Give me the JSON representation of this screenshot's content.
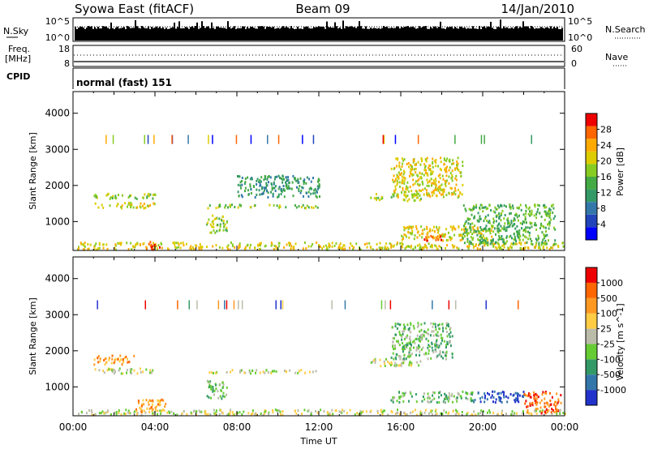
{
  "header": {
    "station": "Syowa East (fitACF)",
    "beam": "Beam 09",
    "date": "14/Jan/2010"
  },
  "top_panels": {
    "nsky_label": "N.Sky",
    "nsky_ticks": [
      "10^5",
      "10^0"
    ],
    "nsearch_label": "N.Search",
    "nsearch_ticks": [
      "10^5",
      "10^0"
    ],
    "freq_label": "Freq.",
    "freq_unit": "[MHz]",
    "freq_ticks": [
      "18",
      "8"
    ],
    "nave_label": "Nave",
    "nave_ticks": [
      "60",
      "0"
    ],
    "cpid_label": "CPID",
    "cpid_value": "normal (fast) 151"
  },
  "chart_data": [
    {
      "type": "heatmap",
      "name": "power",
      "ylabel": "Slant Range [km]",
      "xlabel": "",
      "ylim": [
        200,
        4600
      ],
      "xlim": [
        0,
        24
      ],
      "y_ticks": [
        "1000",
        "2000",
        "3000",
        "4000"
      ],
      "colorbar": {
        "label": "Power [dB]",
        "range": [
          0,
          32
        ],
        "ticks": [
          "28",
          "24",
          "20",
          "16",
          "12",
          "8",
          "4"
        ],
        "colors": [
          "#0000ff",
          "#2244bb",
          "#3377aa",
          "#339966",
          "#44aa44",
          "#88cc22",
          "#ddcc00",
          "#ffaa00",
          "#ff6600",
          "#ee0000"
        ]
      },
      "echo_regions": [
        {
          "t": [
            0.2,
            24.0
          ],
          "r": [
            250,
            450
          ],
          "level": 6
        },
        {
          "t": [
            1.0,
            4.0
          ],
          "r": [
            1400,
            1550
          ],
          "level": 6
        },
        {
          "t": [
            1.0,
            4.0
          ],
          "r": [
            1650,
            1800
          ],
          "level": 5
        },
        {
          "t": [
            6.5,
            12.0
          ],
          "r": [
            1400,
            1500
          ],
          "level": 5
        },
        {
          "t": [
            6.5,
            7.5
          ],
          "r": [
            700,
            1200
          ],
          "level": 5
        },
        {
          "t": [
            14.5,
            17.0
          ],
          "r": [
            1600,
            1800
          ],
          "level": 5
        },
        {
          "t": [
            15.5,
            19.0
          ],
          "r": [
            1700,
            2800
          ],
          "level": 6
        },
        {
          "t": [
            16.0,
            20.5
          ],
          "r": [
            500,
            900
          ],
          "level": 6
        },
        {
          "t": [
            19.0,
            23.5
          ],
          "r": [
            400,
            1500
          ],
          "level": 4
        },
        {
          "t": [
            8.0,
            12.0
          ],
          "r": [
            1700,
            2300
          ],
          "level": 3
        },
        {
          "t": [
            3.5,
            4.2
          ],
          "r": [
            250,
            500
          ],
          "level": 8
        },
        {
          "t": [
            17.0,
            18.0
          ],
          "r": [
            500,
            700
          ],
          "level": 8
        }
      ]
    },
    {
      "type": "heatmap",
      "name": "velocity",
      "ylabel": "Slant Range [km]",
      "xlabel": "Time UT",
      "ylim": [
        200,
        4600
      ],
      "xlim": [
        0,
        24
      ],
      "x_ticks": [
        "00:00",
        "04:00",
        "08:00",
        "12:00",
        "16:00",
        "20:00",
        "00:00"
      ],
      "y_ticks": [
        "1000",
        "2000",
        "3000",
        "4000"
      ],
      "colorbar": {
        "label": "Velocity [m s^-1]",
        "ticks": [
          "1000",
          "500",
          "100",
          "25",
          "-25",
          "-100",
          "-500",
          "-1000"
        ],
        "colors": [
          "#2233cc",
          "#3377aa",
          "#339966",
          "#66cc33",
          "#bbbbaa",
          "#ffcc44",
          "#ff9922",
          "#ff6600",
          "#ee0000"
        ]
      },
      "echo_regions": [
        {
          "t": [
            0.2,
            24.0
          ],
          "r": [
            250,
            400
          ],
          "level": 4
        },
        {
          "t": [
            1.0,
            4.0
          ],
          "r": [
            1400,
            1550
          ],
          "level": 4
        },
        {
          "t": [
            1.0,
            3.0
          ],
          "r": [
            1650,
            1900
          ],
          "level": 6
        },
        {
          "t": [
            6.5,
            12.0
          ],
          "r": [
            1400,
            1500
          ],
          "level": 4
        },
        {
          "t": [
            6.5,
            7.5
          ],
          "r": [
            700,
            1200
          ],
          "level": 3
        },
        {
          "t": [
            14.5,
            17.0
          ],
          "r": [
            1600,
            1800
          ],
          "level": 4
        },
        {
          "t": [
            15.5,
            18.5
          ],
          "r": [
            1800,
            2800
          ],
          "level": 3
        },
        {
          "t": [
            15.5,
            19.5
          ],
          "r": [
            600,
            900
          ],
          "level": 3
        },
        {
          "t": [
            19.5,
            22.0
          ],
          "r": [
            600,
            900
          ],
          "level": 0
        },
        {
          "t": [
            22.0,
            23.8
          ],
          "r": [
            300,
            900
          ],
          "level": 7
        },
        {
          "t": [
            3.0,
            4.5
          ],
          "r": [
            300,
            700
          ],
          "level": 6
        }
      ]
    }
  ]
}
